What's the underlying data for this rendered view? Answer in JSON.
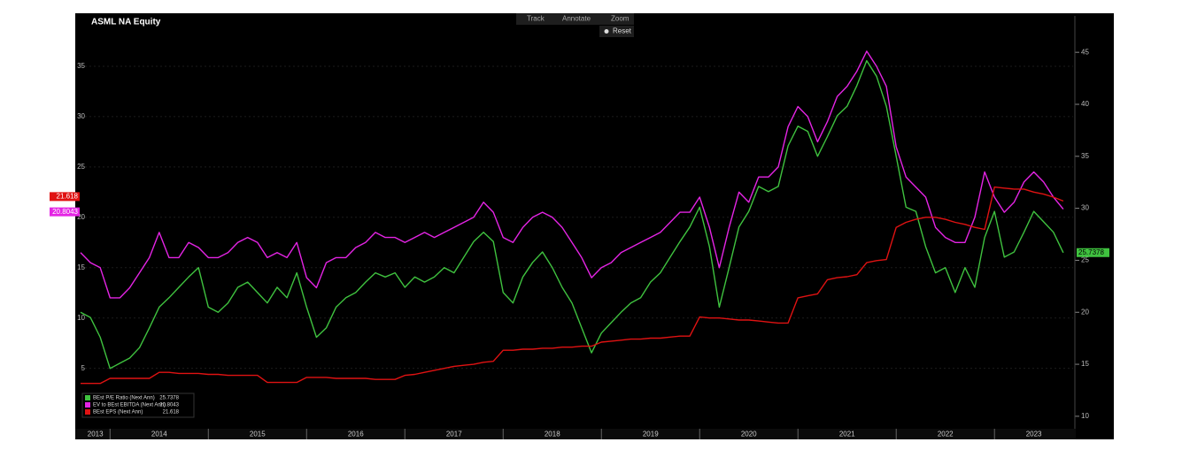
{
  "chart_data": {
    "type": "line",
    "title": "ASML NA Equity",
    "x": [
      2013.7,
      2013.8,
      2013.9,
      2014.0,
      2014.1,
      2014.2,
      2014.3,
      2014.4,
      2014.5,
      2014.6,
      2014.7,
      2014.8,
      2014.9,
      2015.0,
      2015.1,
      2015.2,
      2015.3,
      2015.4,
      2015.5,
      2015.6,
      2015.7,
      2015.8,
      2015.9,
      2016.0,
      2016.1,
      2016.2,
      2016.3,
      2016.4,
      2016.5,
      2016.6,
      2016.7,
      2016.8,
      2016.9,
      2017.0,
      2017.1,
      2017.2,
      2017.3,
      2017.4,
      2017.5,
      2017.6,
      2017.7,
      2017.8,
      2017.9,
      2018.0,
      2018.1,
      2018.2,
      2018.3,
      2018.4,
      2018.5,
      2018.6,
      2018.7,
      2018.8,
      2018.9,
      2019.0,
      2019.1,
      2019.2,
      2019.3,
      2019.4,
      2019.5,
      2019.6,
      2019.7,
      2019.8,
      2019.9,
      2020.0,
      2020.1,
      2020.2,
      2020.3,
      2020.4,
      2020.5,
      2020.6,
      2020.7,
      2020.8,
      2020.9,
      2021.0,
      2021.1,
      2021.2,
      2021.3,
      2021.4,
      2021.5,
      2021.6,
      2021.7,
      2021.8,
      2021.9,
      2022.0,
      2022.1,
      2022.2,
      2022.3,
      2022.4,
      2022.5,
      2022.6,
      2022.7,
      2022.8,
      2022.9,
      2023.0,
      2023.1,
      2023.2,
      2023.3,
      2023.4,
      2023.5,
      2023.6,
      2023.7
    ],
    "xlim": [
      2013.7,
      2023.8
    ],
    "xticks": [
      2013,
      2014,
      2015,
      2016,
      2017,
      2018,
      2019,
      2020,
      2021,
      2022,
      2023
    ],
    "ylim": [
      -1,
      40
    ],
    "yticks": [
      5,
      10,
      15,
      20,
      25,
      30,
      35
    ],
    "y2lim": [
      8.8,
      48.5
    ],
    "y2ticks": [
      10,
      15,
      20,
      25,
      30,
      35,
      40,
      45
    ],
    "grid": true,
    "legend": "bottom-left",
    "series": [
      {
        "name": "BEst P/E Ratio (Next Ann)",
        "color": "#3fc23f",
        "axis": "y2",
        "values": [
          20.0,
          19.5,
          17.6,
          14.6,
          15.1,
          15.6,
          16.6,
          18.5,
          20.5,
          21.4,
          22.4,
          23.4,
          24.3,
          20.5,
          20.0,
          20.9,
          22.4,
          22.9,
          21.9,
          20.9,
          22.4,
          21.4,
          23.8,
          20.5,
          17.6,
          18.5,
          20.5,
          21.4,
          21.9,
          22.9,
          23.8,
          23.4,
          23.8,
          22.4,
          23.4,
          22.9,
          23.4,
          24.3,
          23.8,
          25.3,
          26.8,
          27.7,
          26.8,
          21.9,
          20.9,
          23.4,
          24.8,
          25.8,
          24.3,
          22.4,
          20.9,
          18.5,
          16.1,
          18.0,
          19.0,
          20.0,
          20.9,
          21.4,
          22.9,
          23.8,
          25.3,
          26.8,
          28.2,
          30.1,
          26.3,
          20.5,
          24.3,
          28.2,
          29.7,
          32.1,
          31.6,
          32.1,
          36.0,
          37.9,
          37.4,
          35.0,
          36.9,
          38.9,
          39.8,
          41.8,
          44.2,
          42.7,
          39.8,
          35.0,
          30.1,
          29.7,
          26.3,
          23.8,
          24.3,
          21.9,
          24.3,
          22.4,
          27.2,
          29.7,
          25.3,
          25.8,
          27.7,
          29.7,
          28.7,
          27.7,
          25.7378
        ]
      },
      {
        "name": "EV to BEst EBITDA (Next Ann)",
        "color": "#e424e4",
        "values": [
          16.5,
          15.5,
          15,
          12,
          12,
          13,
          14.5,
          16,
          18.5,
          16,
          16,
          17.5,
          17,
          16,
          16,
          16.5,
          17.5,
          18,
          17.5,
          16,
          16.5,
          16,
          17.5,
          14,
          13,
          15.5,
          16,
          16,
          17,
          17.5,
          18.5,
          18,
          18,
          17.5,
          18,
          18.5,
          18,
          18.5,
          19,
          19.5,
          20,
          21.5,
          20.5,
          18,
          17.5,
          19,
          20,
          20.5,
          20,
          19,
          17.5,
          16,
          14,
          15,
          15.5,
          16.5,
          17,
          17.5,
          18,
          18.5,
          19.5,
          20.5,
          20.5,
          22,
          19,
          15,
          19,
          22.5,
          21.5,
          24,
          24,
          25,
          29,
          31,
          30,
          27.5,
          29.5,
          32,
          33,
          34.5,
          36.5,
          35,
          33,
          27,
          24,
          23,
          22,
          19,
          18,
          17.5,
          17.5,
          20,
          24.5,
          22,
          20.5,
          21.5,
          23.5,
          24.5,
          23.5,
          22,
          20.8043
        ]
      },
      {
        "name": "BEst EPS (Next Ann)",
        "color": "#e01212",
        "values": [
          3.5,
          3.5,
          3.5,
          4.0,
          4.0,
          4.0,
          4.0,
          4.0,
          4.6,
          4.6,
          4.5,
          4.5,
          4.5,
          4.4,
          4.4,
          4.3,
          4.3,
          4.3,
          4.3,
          3.6,
          3.6,
          3.6,
          3.6,
          4.1,
          4.1,
          4.1,
          4.0,
          4.0,
          4.0,
          4.0,
          3.9,
          3.9,
          3.9,
          4.3,
          4.4,
          4.6,
          4.8,
          5.0,
          5.2,
          5.3,
          5.4,
          5.6,
          5.7,
          6.8,
          6.8,
          6.9,
          6.9,
          7.0,
          7.0,
          7.1,
          7.1,
          7.2,
          7.2,
          7.6,
          7.7,
          7.8,
          7.9,
          7.9,
          8.0,
          8.0,
          8.1,
          8.2,
          8.2,
          10.1,
          10.0,
          10.0,
          9.9,
          9.8,
          9.8,
          9.7,
          9.6,
          9.5,
          9.5,
          12.0,
          12.2,
          12.4,
          13.8,
          14.0,
          14.1,
          14.3,
          15.5,
          15.7,
          15.8,
          19.0,
          19.5,
          19.8,
          20.0,
          20.0,
          19.8,
          19.5,
          19.3,
          19.0,
          18.8,
          23.0,
          22.9,
          22.8,
          22.8,
          22.5,
          22.3,
          22.0,
          21.618
        ]
      }
    ]
  },
  "toolbar": {
    "row1": [
      "Track",
      "Annotate",
      "Zoom"
    ],
    "row2": [
      "Reset"
    ]
  }
}
